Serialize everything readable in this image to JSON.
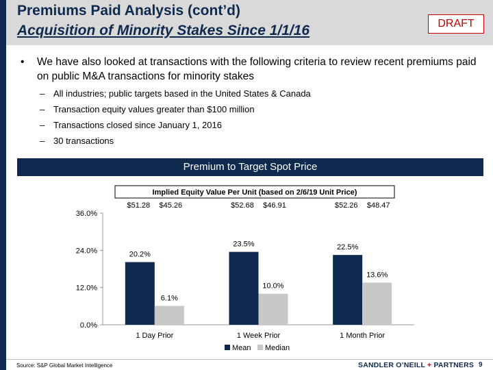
{
  "header": {
    "title": "Premiums Paid Analysis (cont’d)",
    "subtitle": "Acquisition of Minority Stakes Since 1/1/16",
    "draft_label": "DRAFT"
  },
  "intro": {
    "bullet_symbol": "•",
    "dash_symbol": "–",
    "main": "We have also looked at transactions with the following criteria to review recent premiums paid on public M&A transactions for minority stakes",
    "sub": [
      "All industries; public targets based in the United States & Canada",
      "Transaction equity values greater than $100 million",
      "Transactions closed since January 1, 2016",
      "30 transactions"
    ]
  },
  "banner": {
    "title": "Premium to Target Spot Price"
  },
  "chart_data": {
    "type": "bar",
    "title": "Premium to Target Spot Price",
    "categories": [
      "1 Day Prior",
      "1 Week Prior",
      "1 Month Prior"
    ],
    "series": [
      {
        "name": "Mean",
        "values": [
          20.2,
          23.5,
          22.5
        ],
        "labels": [
          "20.2%",
          "23.5%",
          "22.5%"
        ],
        "color": "#0e2a4f"
      },
      {
        "name": "Median",
        "values": [
          6.1,
          10.0,
          13.6
        ],
        "labels": [
          "6.1%",
          "10.0%",
          "13.6%"
        ],
        "color": "#c8c8c8"
      }
    ],
    "ylim": [
      0,
      36
    ],
    "yticks": [
      0,
      12,
      24,
      36
    ],
    "ytick_labels": [
      "0.0%",
      "12.0%",
      "24.0%",
      "36.0%"
    ],
    "implied_header": "Implied Equity Value Per Unit (based on 2/6/19 Unit Price)",
    "implied_values": [
      [
        "$51.28",
        "$45.26"
      ],
      [
        "$52.68",
        "$46.91"
      ],
      [
        "$52.26",
        "$48.47"
      ]
    ],
    "legend": "bottom-center",
    "grid": false
  },
  "footer": {
    "source": "Source: S&P Global Market Intelligence",
    "firm_part1": "SANDLER O’NEILL",
    "firm_plus": " + ",
    "firm_part2": "PARTNERS",
    "page": "9"
  }
}
